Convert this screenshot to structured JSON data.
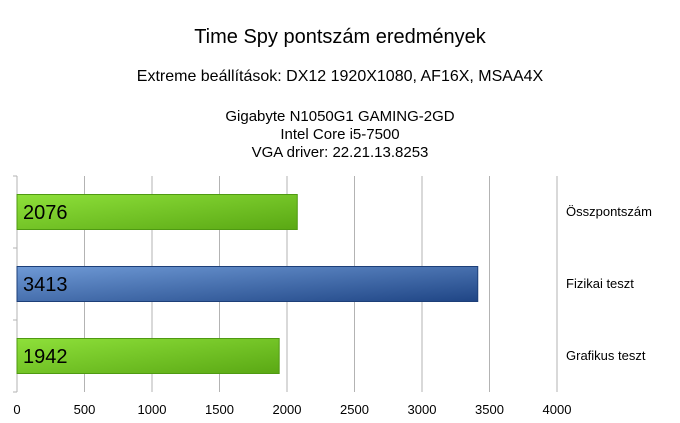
{
  "chart_data": {
    "type": "bar",
    "orientation": "horizontal",
    "title": "Time Spy pontszám eredmények",
    "subtitle": "Extreme beállítások: DX12 1920X1080, AF16X, MSAA4X",
    "info_lines": [
      "Gigabyte N1050G1 GAMING-2GD",
      "Intel Core i5-7500",
      "VGA driver: 22.21.13.8253"
    ],
    "categories": [
      "Összpontszám",
      "Fizikai teszt",
      "Grafikus teszt"
    ],
    "values": [
      2076,
      3413,
      1942
    ],
    "bar_colors": [
      "#7ccc2c",
      "#2f5a9a",
      "#7ccc2c"
    ],
    "xlim": [
      0,
      4000
    ],
    "xticks": [
      "0",
      "500",
      "1000",
      "1500",
      "2000",
      "2500",
      "3000",
      "3500",
      "4000"
    ],
    "grid": true,
    "legend": "none"
  }
}
